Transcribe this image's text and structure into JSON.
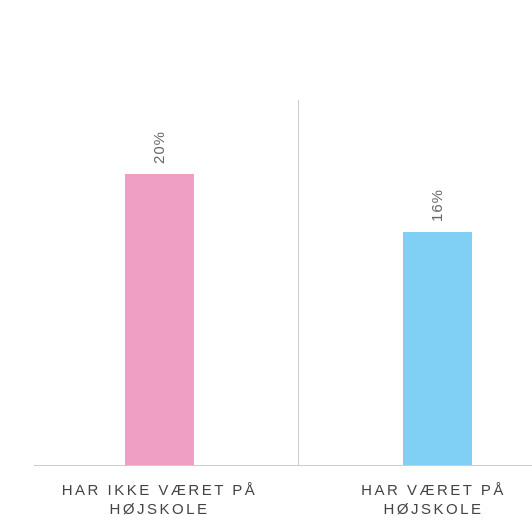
{
  "chart_data": {
    "type": "bar",
    "categories": [
      "HAR IKKE VÆRET PÅ HØJSKOLE",
      "HAR VÆRET PÅ HØJSKOLE"
    ],
    "values": [
      20,
      16
    ],
    "value_labels": [
      "20%",
      "16%"
    ],
    "colors": [
      "#f09fc4",
      "#80cff4"
    ],
    "ylim": [
      0,
      30
    ]
  }
}
